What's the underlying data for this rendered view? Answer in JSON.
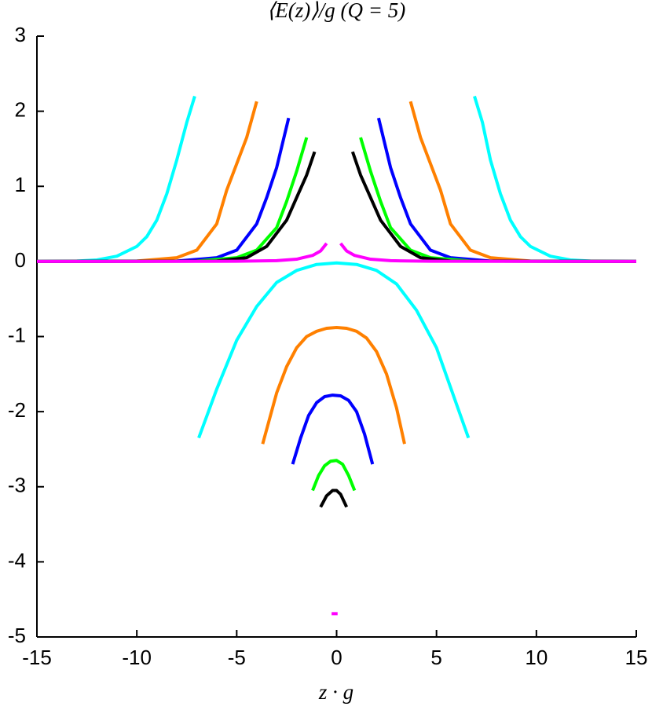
{
  "chart_data": {
    "type": "line",
    "title": "⟨E(z)⟩/g (Q = 5)",
    "x_label": "z · g",
    "xlim": [
      -15,
      15
    ],
    "ylim": [
      -5,
      3
    ],
    "xticks": [
      -15,
      -10,
      -5,
      0,
      5,
      10,
      15
    ],
    "yticks": [
      -5,
      -4,
      -3,
      -2,
      -1,
      0,
      1,
      2,
      3
    ],
    "series": [
      {
        "color": "#00ffff",
        "x": [
          -15,
          -13,
          -12,
          -11,
          -10,
          -9.5,
          -9,
          -8.5,
          -8,
          -7.5,
          -7.1
        ],
        "values": [
          0,
          0.005,
          0.02,
          0.07,
          0.2,
          0.33,
          0.55,
          0.9,
          1.35,
          1.85,
          2.2
        ]
      },
      {
        "color": "#00ffff",
        "x": [
          6.9,
          7.3,
          7.7,
          8.2,
          8.7,
          9.2,
          9.7,
          10.7,
          11.7,
          12.7,
          15
        ],
        "values": [
          2.2,
          1.85,
          1.35,
          0.9,
          0.55,
          0.33,
          0.2,
          0.07,
          0.02,
          0.005,
          0
        ]
      },
      {
        "color": "#ff8000",
        "x": [
          -15,
          -10,
          -8,
          -7,
          -6,
          -5.5,
          -5,
          -4.5,
          -4
        ],
        "values": [
          0,
          0.005,
          0.05,
          0.15,
          0.5,
          0.95,
          1.3,
          1.65,
          2.13
        ]
      },
      {
        "color": "#ff8000",
        "x": [
          3.7,
          4.2,
          4.7,
          5.2,
          5.7,
          6.7,
          7.7,
          9.7,
          15
        ],
        "values": [
          2.13,
          1.65,
          1.3,
          0.95,
          0.5,
          0.15,
          0.05,
          0.005,
          0
        ]
      },
      {
        "color": "#0000ff",
        "x": [
          -15,
          -8,
          -6,
          -5,
          -4,
          -3.5,
          -3,
          -2.4
        ],
        "values": [
          0,
          0.005,
          0.05,
          0.15,
          0.5,
          0.85,
          1.25,
          1.91
        ]
      },
      {
        "color": "#0000ff",
        "x": [
          2.1,
          2.7,
          3.2,
          3.7,
          4.7,
          5.7,
          7.7,
          15
        ],
        "values": [
          1.91,
          1.25,
          0.85,
          0.5,
          0.15,
          0.05,
          0.005,
          0
        ]
      },
      {
        "color": "#00ff00",
        "x": [
          -15,
          -7,
          -5,
          -4,
          -3,
          -2.5,
          -2,
          -1.5
        ],
        "values": [
          0,
          0.005,
          0.05,
          0.15,
          0.45,
          0.8,
          1.2,
          1.65
        ]
      },
      {
        "color": "#00ff00",
        "x": [
          1.2,
          1.7,
          2.2,
          2.7,
          3.7,
          4.7,
          6.7,
          15
        ],
        "values": [
          1.65,
          1.2,
          0.8,
          0.45,
          0.15,
          0.05,
          0.005,
          0
        ]
      },
      {
        "color": "#000000",
        "x": [
          -15,
          -6,
          -4.5,
          -3.5,
          -2.5,
          -2,
          -1.5,
          -1.1
        ],
        "values": [
          0,
          0.005,
          0.05,
          0.2,
          0.55,
          0.85,
          1.15,
          1.46
        ]
      },
      {
        "color": "#000000",
        "x": [
          0.8,
          1.2,
          1.7,
          2.2,
          3.2,
          4.2,
          5.7,
          15
        ],
        "values": [
          1.46,
          1.15,
          0.85,
          0.55,
          0.2,
          0.05,
          0.005,
          0
        ]
      },
      {
        "color": "#ff00ff",
        "x": [
          -15,
          -5,
          -3,
          -2,
          -1.2,
          -0.8,
          -0.5
        ],
        "values": [
          0,
          0.002,
          0.01,
          0.03,
          0.08,
          0.14,
          0.24
        ]
      },
      {
        "color": "#ff00ff",
        "x": [
          0.2,
          0.5,
          0.9,
          1.7,
          2.7,
          4.7,
          15
        ],
        "values": [
          0.24,
          0.14,
          0.08,
          0.03,
          0.01,
          0.002,
          0
        ]
      },
      {
        "color": "#00ffff",
        "x": [
          -6.9,
          -6,
          -5,
          -4,
          -3,
          -2,
          -1,
          0,
          1,
          2,
          3,
          4,
          5,
          5.8,
          6.6
        ],
        "values": [
          -2.35,
          -1.7,
          -1.05,
          -0.6,
          -0.28,
          -0.12,
          -0.04,
          -0.02,
          -0.04,
          -0.12,
          -0.3,
          -0.65,
          -1.15,
          -1.75,
          -2.35
        ]
      },
      {
        "color": "#ff8000",
        "x": [
          -3.7,
          -3,
          -2.5,
          -2,
          -1.5,
          -1,
          -0.5,
          0,
          0.5,
          1,
          1.5,
          2,
          2.5,
          3,
          3.4
        ],
        "values": [
          -2.43,
          -1.75,
          -1.4,
          -1.15,
          -1.0,
          -0.93,
          -0.89,
          -0.88,
          -0.89,
          -0.93,
          -1.02,
          -1.2,
          -1.5,
          -1.95,
          -2.43
        ]
      },
      {
        "color": "#0000ff",
        "x": [
          -2.2,
          -1.8,
          -1.4,
          -1,
          -0.6,
          -0.2,
          0.2,
          0.6,
          1,
          1.4,
          1.8
        ],
        "values": [
          -2.7,
          -2.35,
          -2.05,
          -1.88,
          -1.8,
          -1.78,
          -1.79,
          -1.85,
          -2.0,
          -2.3,
          -2.7
        ]
      },
      {
        "color": "#00ff00",
        "x": [
          -1.2,
          -0.9,
          -0.6,
          -0.3,
          0,
          0.3,
          0.6,
          0.9
        ],
        "values": [
          -3.05,
          -2.85,
          -2.72,
          -2.66,
          -2.65,
          -2.7,
          -2.85,
          -3.05
        ]
      },
      {
        "color": "#000000",
        "x": [
          -0.8,
          -0.5,
          -0.2,
          0,
          0.2,
          0.5
        ],
        "values": [
          -3.27,
          -3.12,
          -3.05,
          -3.05,
          -3.1,
          -3.27
        ]
      },
      {
        "color": "#ff00ff",
        "x": [
          -0.25,
          0.05
        ],
        "values": [
          -4.69,
          -4.69
        ]
      }
    ]
  }
}
